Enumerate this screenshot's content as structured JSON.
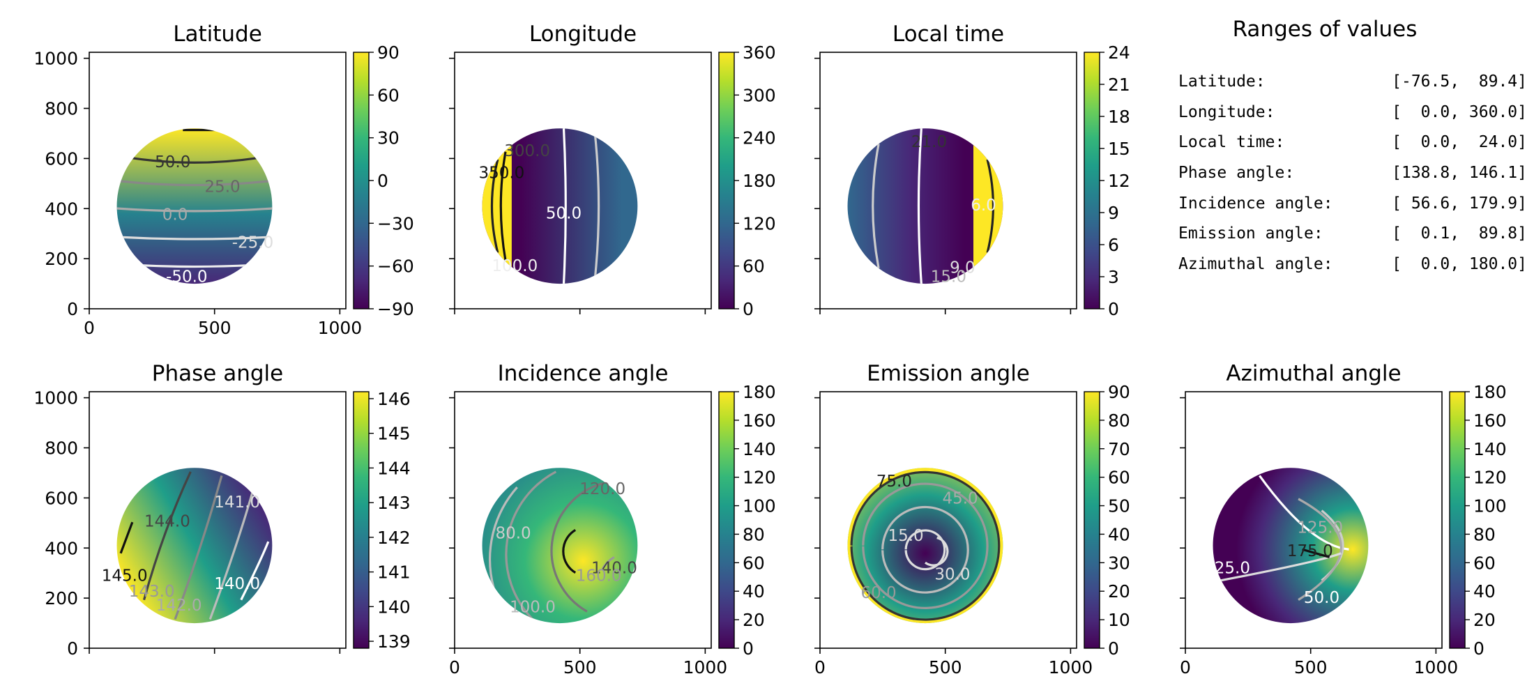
{
  "colors": {
    "viridis": [
      "#440154",
      "#482878",
      "#3e4989",
      "#31688e",
      "#26828e",
      "#1f9e89",
      "#35b779",
      "#6ece58",
      "#b5de2b",
      "#fde725"
    ]
  },
  "ranges_panel": {
    "title": "Ranges of values",
    "rows": [
      {
        "label": "Latitude:",
        "value": "[-76.5,  89.4]"
      },
      {
        "label": "Longitude:",
        "value": "[  0.0, 360.0]"
      },
      {
        "label": "Local time:",
        "value": "[  0.0,  24.0]"
      },
      {
        "label": "Phase angle:",
        "value": "[138.8, 146.1]"
      },
      {
        "label": "Incidence angle:",
        "value": "[ 56.6, 179.9]"
      },
      {
        "label": "Emission angle:",
        "value": "[  0.1,  89.8]"
      },
      {
        "label": "Azimuthal angle:",
        "value": "[  0.0, 180.0]"
      }
    ]
  },
  "chart_data": [
    {
      "type": "heatmap",
      "title": "Latitude",
      "xlim": [
        0,
        1024
      ],
      "ylim": [
        0,
        1024
      ],
      "xticks": [
        "0",
        "500",
        "1000"
      ],
      "yticks": [
        "0",
        "200",
        "400",
        "600",
        "800",
        "1000"
      ],
      "colorbar": {
        "min": -90,
        "max": 90,
        "ticks": [
          "90",
          "60",
          "30",
          "0",
          "−30",
          "−60",
          "−90"
        ]
      },
      "contour_labels": [
        "50.0",
        "25.0",
        "0.0",
        "-25.0",
        "-50.0"
      ],
      "disk": {
        "cx": 420,
        "cy": 410,
        "r": 310
      }
    },
    {
      "type": "heatmap",
      "title": "Longitude",
      "xlim": [
        0,
        1024
      ],
      "ylim": [
        0,
        1024
      ],
      "xticks": [],
      "yticks": [],
      "colorbar": {
        "min": 0,
        "max": 360,
        "ticks": [
          "360",
          "300",
          "240",
          "180",
          "120",
          "60",
          "0"
        ]
      },
      "contour_labels": [
        "350.0",
        "300.0",
        "50.0",
        "100.0"
      ],
      "disk": {
        "cx": 420,
        "cy": 410,
        "r": 310
      }
    },
    {
      "type": "heatmap",
      "title": "Local time",
      "xlim": [
        0,
        1024
      ],
      "ylim": [
        0,
        1024
      ],
      "xticks": [],
      "yticks": [],
      "colorbar": {
        "min": 0,
        "max": 24,
        "ticks": [
          "24",
          "21",
          "18",
          "15",
          "12",
          "9",
          "6",
          "3",
          "0"
        ]
      },
      "contour_labels": [
        "21.0",
        "6.0",
        "9.0",
        "15.0"
      ],
      "disk": {
        "cx": 420,
        "cy": 410,
        "r": 310
      }
    },
    {
      "type": "heatmap",
      "title": "Phase angle",
      "xlim": [
        0,
        1024
      ],
      "ylim": [
        0,
        1024
      ],
      "xticks": [],
      "yticks": [
        "0",
        "200",
        "400",
        "600",
        "800",
        "1000"
      ],
      "colorbar": {
        "min": 138.8,
        "max": 146.2,
        "ticks": [
          "146",
          "145",
          "144",
          "143",
          "142",
          "141",
          "140",
          "139"
        ]
      },
      "contour_labels": [
        "145.0",
        "144.0",
        "143.0",
        "142.0",
        "141.0",
        "140.0"
      ],
      "disk": {
        "cx": 420,
        "cy": 410,
        "r": 310
      }
    },
    {
      "type": "heatmap",
      "title": "Incidence angle",
      "xlim": [
        0,
        1024
      ],
      "ylim": [
        0,
        1024
      ],
      "xticks": [
        "0",
        "500",
        "1000"
      ],
      "yticks": [],
      "colorbar": {
        "min": 0,
        "max": 180,
        "ticks": [
          "180",
          "160",
          "140",
          "120",
          "100",
          "80",
          "60",
          "40",
          "20",
          "0"
        ]
      },
      "contour_labels": [
        "80.0",
        "100.0",
        "120.0",
        "140.0",
        "160.0"
      ],
      "disk": {
        "cx": 420,
        "cy": 410,
        "r": 310
      }
    },
    {
      "type": "heatmap",
      "title": "Emission angle",
      "xlim": [
        0,
        1024
      ],
      "ylim": [
        0,
        1024
      ],
      "xticks": [
        "0",
        "500",
        "1000"
      ],
      "yticks": [],
      "colorbar": {
        "min": 0,
        "max": 90,
        "ticks": [
          "90",
          "80",
          "70",
          "60",
          "50",
          "40",
          "30",
          "20",
          "10",
          "0"
        ]
      },
      "contour_labels": [
        "75.0",
        "45.0",
        "15.0",
        "30.0",
        "60.0"
      ],
      "disk": {
        "cx": 420,
        "cy": 410,
        "r": 310
      }
    },
    {
      "type": "heatmap",
      "title": "Azimuthal angle",
      "xlim": [
        0,
        1024
      ],
      "ylim": [
        0,
        1024
      ],
      "xticks": [
        "0",
        "500",
        "1000"
      ],
      "yticks": [],
      "colorbar": {
        "min": 0,
        "max": 180,
        "ticks": [
          "180",
          "160",
          "140",
          "120",
          "100",
          "80",
          "60",
          "40",
          "20",
          "0"
        ]
      },
      "contour_labels": [
        "25.0",
        "50.0",
        "125.0",
        "175.0"
      ],
      "disk": {
        "cx": 420,
        "cy": 410,
        "r": 310
      }
    }
  ]
}
